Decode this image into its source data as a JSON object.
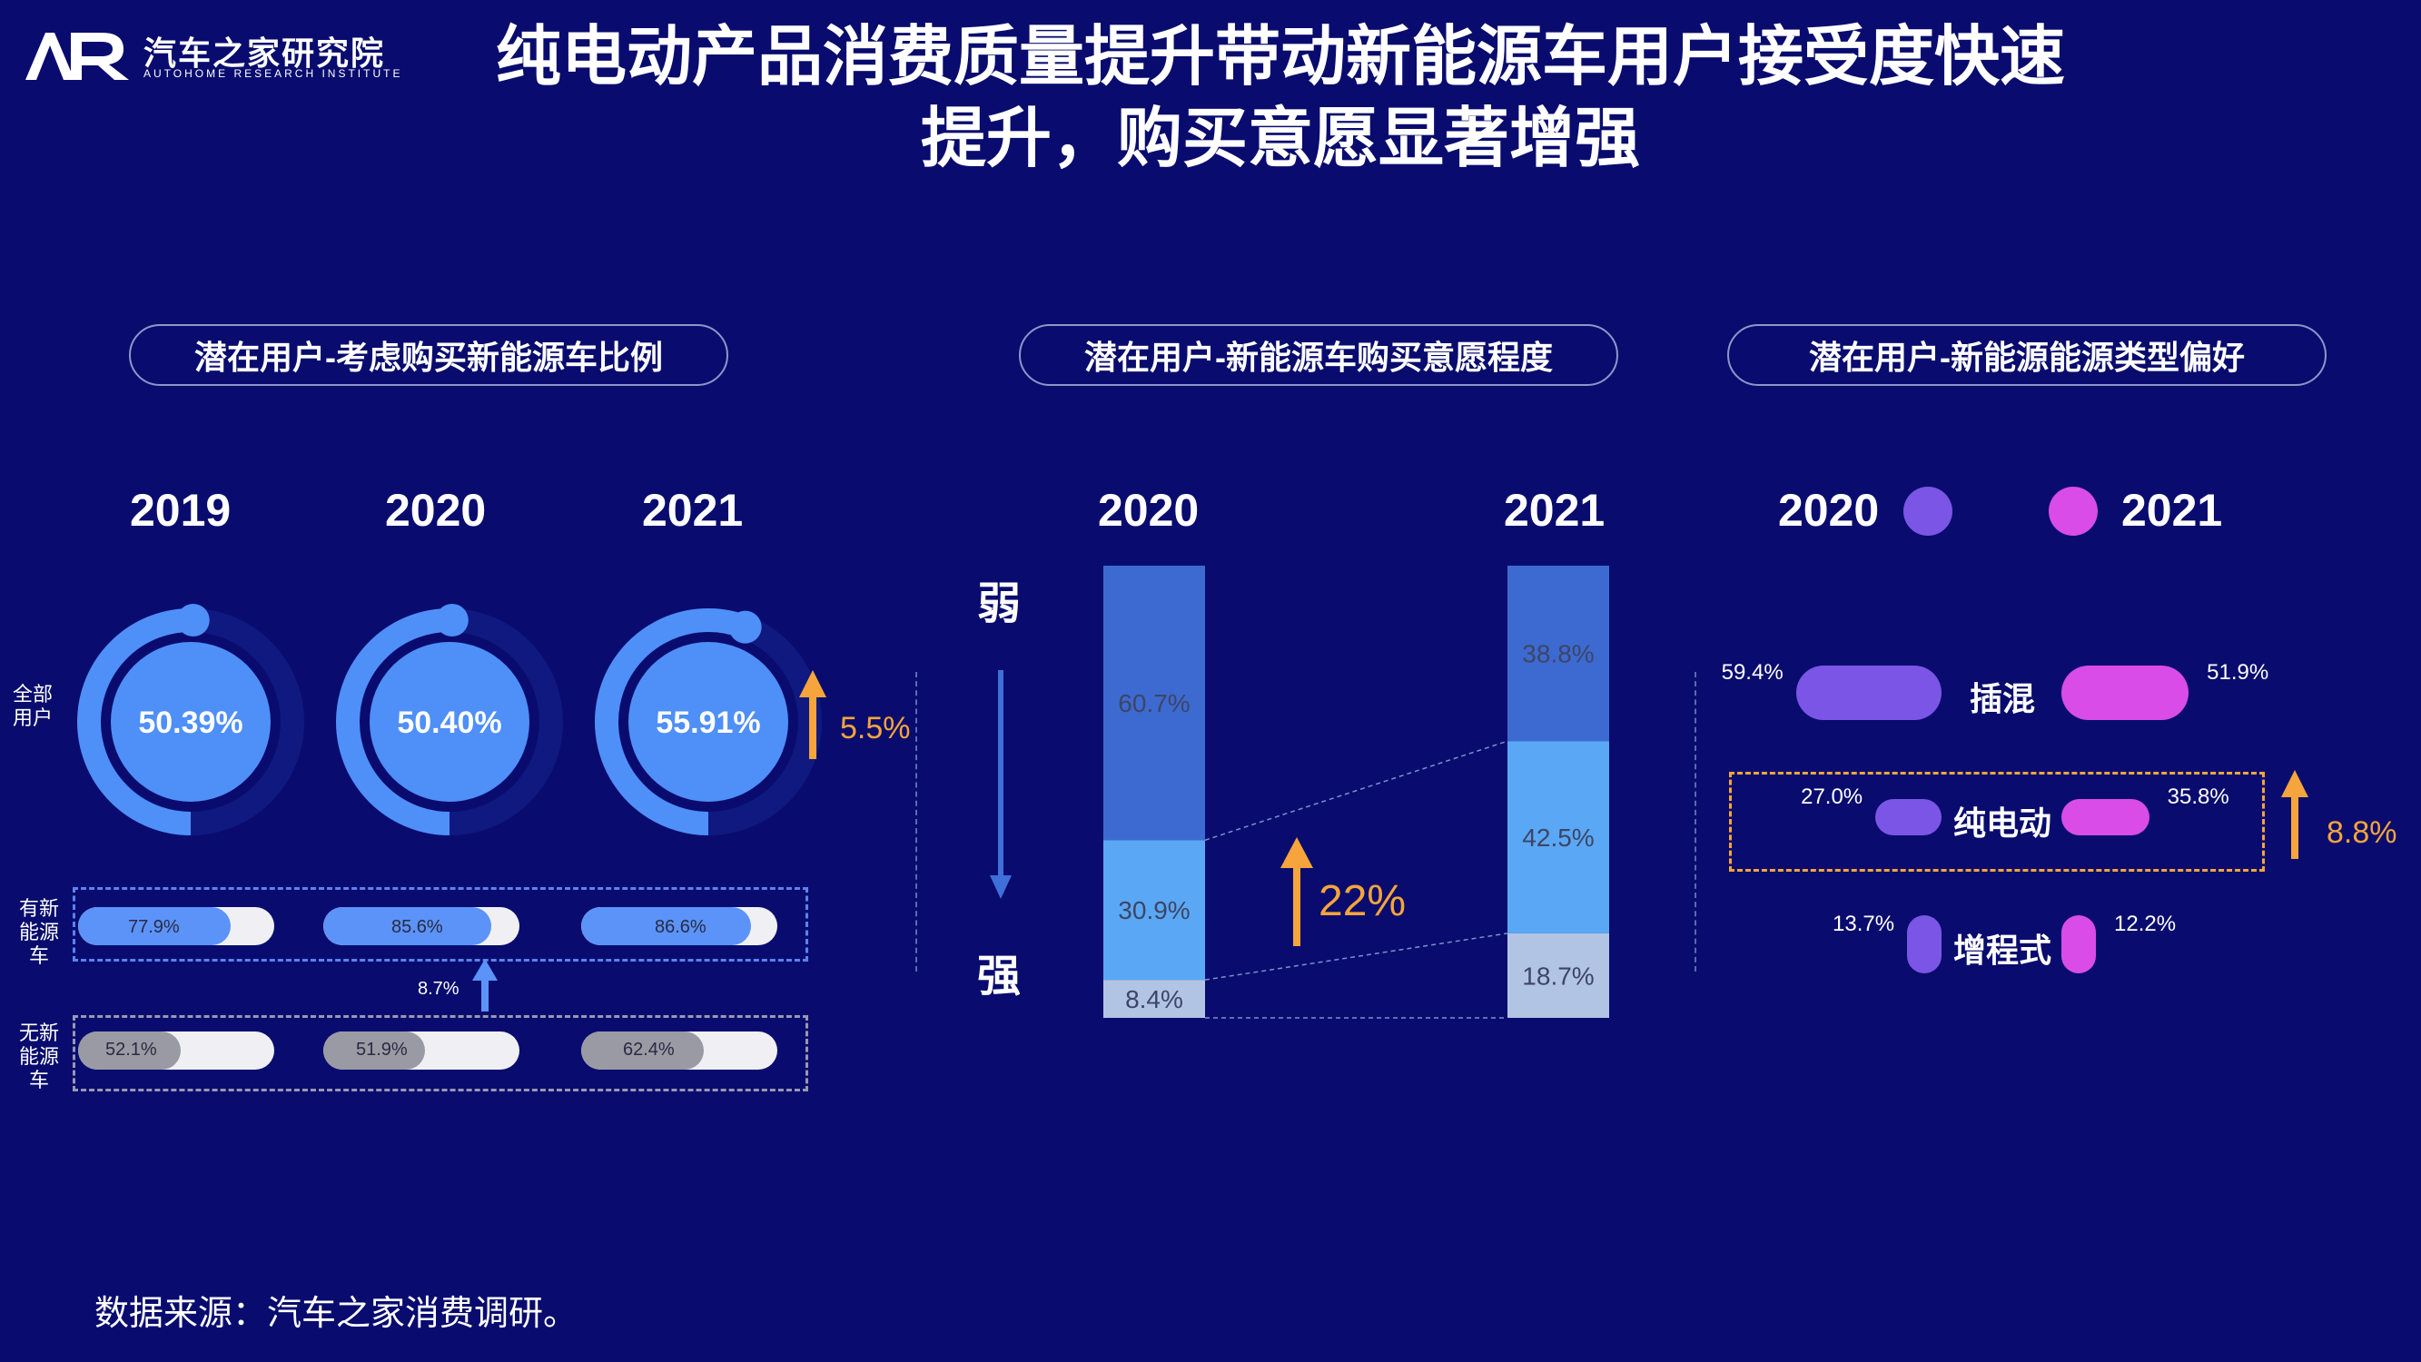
{
  "brand": {
    "name_cn": "汽车之家研究院",
    "name_en": "AUTOHOME RESEARCH INSTITUTE",
    "logo_icon": "autohome-ar-logo"
  },
  "title": {
    "line1": "纯电动产品消费质量提升带动新能源车用户接受度快速",
    "line2": "提升，购买意愿显著增强"
  },
  "colors": {
    "background": "#090c6e",
    "blue": "#4f8ff8",
    "orange": "#f5a53b",
    "purple_2020": "#7b55e6",
    "magenta_2021": "#d94ce8"
  },
  "panel1": {
    "header": "潜在用户-考虑购买新能源车比例",
    "years": [
      "2019",
      "2020",
      "2021"
    ],
    "row_all_label": "全部\n用户",
    "row_has_label": "有新\n能源\n车",
    "row_no_label": "无新\n能源\n车",
    "all_users": [
      "50.39%",
      "50.40%",
      "55.91%"
    ],
    "all_users_values": [
      50.39,
      50.4,
      55.91
    ],
    "growth": "5.5%",
    "has_nev": [
      "77.9%",
      "85.6%",
      "86.6%"
    ],
    "has_nev_values": [
      77.9,
      85.6,
      86.6
    ],
    "has_growth": "8.7%",
    "no_nev": [
      "52.1%",
      "51.9%",
      "62.4%"
    ],
    "no_nev_values": [
      52.1,
      51.9,
      62.4
    ]
  },
  "panel2": {
    "header": "潜在用户-新能源车购买意愿程度",
    "weak_label": "弱",
    "strong_label": "强",
    "growth": "22%",
    "bars": [
      {
        "year": "2020",
        "weak": "60.7%",
        "mid": "30.9%",
        "strong": "8.4%"
      },
      {
        "year": "2021",
        "weak": "38.8%",
        "mid": "42.5%",
        "strong": "18.7%"
      }
    ]
  },
  "panel3": {
    "header": "潜在用户-新能源能源类型偏好",
    "legend": [
      "2020",
      "2021"
    ],
    "growth": "8.8%",
    "rows": [
      {
        "name": "插混",
        "v2020": "59.4%",
        "v2021": "51.9%"
      },
      {
        "name": "纯电动",
        "v2020": "27.0%",
        "v2021": "35.8%"
      },
      {
        "name": "增程式",
        "v2020": "13.7%",
        "v2021": "12.2%"
      }
    ]
  },
  "source": "数据来源：汽车之家消费调研。",
  "chart_data": [
    {
      "type": "bar",
      "title": "潜在用户-考虑购买新能源车比例",
      "categories": [
        "2019",
        "2020",
        "2021"
      ],
      "series": [
        {
          "name": "全部用户",
          "values": [
            50.39,
            50.4,
            55.91
          ]
        },
        {
          "name": "有新能源车",
          "values": [
            77.9,
            85.6,
            86.6
          ]
        },
        {
          "name": "无新能源车",
          "values": [
            52.1,
            51.9,
            62.4
          ]
        }
      ],
      "annotations": [
        "5.5%",
        "8.7%"
      ]
    },
    {
      "type": "bar",
      "title": "潜在用户-新能源车购买意愿程度",
      "stacked": true,
      "categories": [
        "2020",
        "2021"
      ],
      "series": [
        {
          "name": "弱",
          "values": [
            60.7,
            38.8
          ]
        },
        {
          "values": [
            30.9,
            42.5
          ]
        },
        {
          "name": "强",
          "values": [
            8.4,
            18.7
          ]
        }
      ],
      "annotations": [
        "22%"
      ]
    },
    {
      "type": "bar",
      "title": "潜在用户-新能源能源类型偏好",
      "categories": [
        "插混",
        "纯电动",
        "增程式"
      ],
      "series": [
        {
          "name": "2020",
          "values": [
            59.4,
            27.0,
            13.7
          ]
        },
        {
          "name": "2021",
          "values": [
            51.9,
            35.8,
            12.2
          ]
        }
      ],
      "annotations": [
        "8.8%"
      ]
    }
  ]
}
